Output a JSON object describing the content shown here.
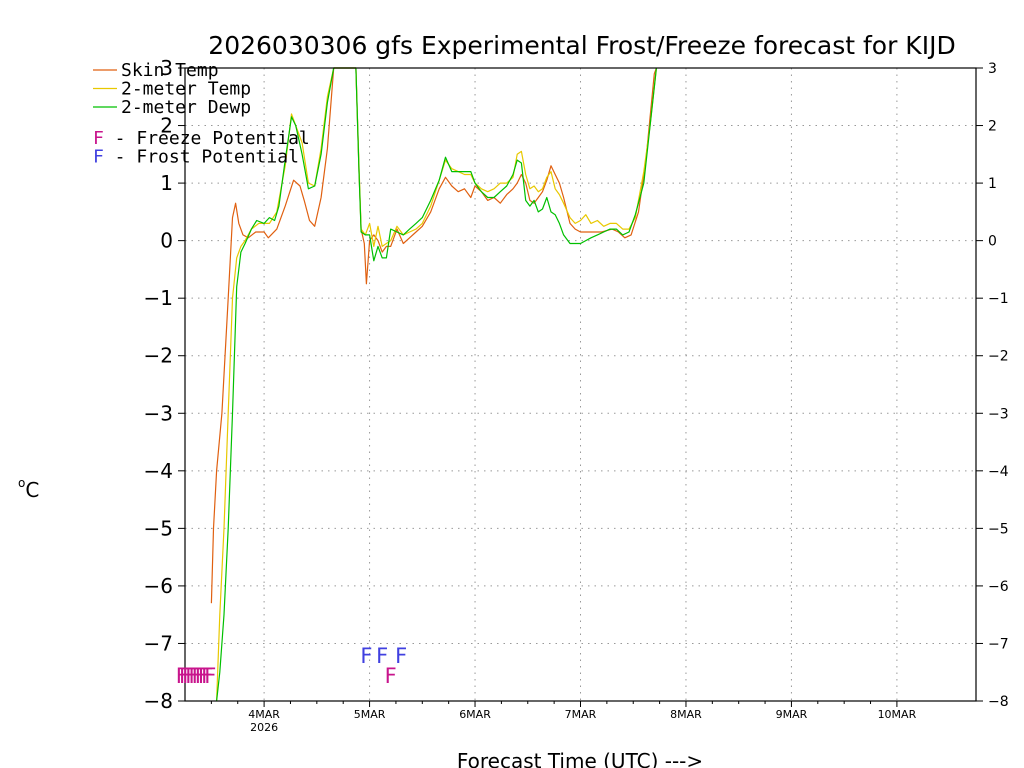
{
  "chart_data": {
    "type": "line",
    "title": "2026030306 gfs Experimental Frost/Freeze forecast for KIJD",
    "xlabel": "Forecast Time (UTC) --->",
    "ylabel_degree": "o",
    "ylabel_unit": "C",
    "x_unit": "days since 4MAR 00Z",
    "xlim": [
      -0.75,
      6.75
    ],
    "ylim": [
      -8,
      3
    ],
    "yticks": [
      -8,
      -7,
      -6,
      -5,
      -4,
      -3,
      -2,
      -1,
      0,
      1,
      2,
      3
    ],
    "ytick_labels": [
      "−8",
      "−7",
      "−6",
      "−5",
      "−4",
      "−3",
      "−2",
      "−1",
      "0",
      "1",
      "2",
      "3"
    ],
    "xticks": [
      {
        "x": 0,
        "label": "4MAR",
        "sublabel": "2026"
      },
      {
        "x": 1,
        "label": "5MAR",
        "sublabel": ""
      },
      {
        "x": 2,
        "label": "6MAR",
        "sublabel": ""
      },
      {
        "x": 3,
        "label": "7MAR",
        "sublabel": ""
      },
      {
        "x": 4,
        "label": "8MAR",
        "sublabel": ""
      },
      {
        "x": 5,
        "label": "9MAR",
        "sublabel": ""
      },
      {
        "x": 6,
        "label": "10MAR",
        "sublabel": ""
      }
    ],
    "grid": true,
    "legend": [
      {
        "label": "Skin Temp",
        "color": "#e06010"
      },
      {
        "label": "2-meter Temp",
        "color": "#e8c800"
      },
      {
        "label": "2-meter Dewp",
        "color": "#00c000"
      },
      {
        "label": "F - Freeze Potential",
        "color": "#c8148c",
        "marker": true
      },
      {
        "label": "F - Frost Potential",
        "color": "#4040e0",
        "marker": true
      }
    ],
    "series": [
      {
        "name": "Skin Temp",
        "color": "#e06010",
        "points": [
          [
            -0.5,
            -6.3
          ],
          [
            -0.48,
            -5.0
          ],
          [
            -0.45,
            -4.0
          ],
          [
            -0.4,
            -3.0
          ],
          [
            -0.34,
            -1.0
          ],
          [
            -0.3,
            0.4
          ],
          [
            -0.27,
            0.65
          ],
          [
            -0.24,
            0.3
          ],
          [
            -0.2,
            0.1
          ],
          [
            -0.15,
            0.05
          ],
          [
            -0.08,
            0.15
          ],
          [
            0,
            0.15
          ],
          [
            0.04,
            0.05
          ],
          [
            0.12,
            0.2
          ],
          [
            0.2,
            0.6
          ],
          [
            0.28,
            1.05
          ],
          [
            0.34,
            0.95
          ],
          [
            0.38,
            0.7
          ],
          [
            0.43,
            0.35
          ],
          [
            0.48,
            0.25
          ],
          [
            0.54,
            0.75
          ],
          [
            0.6,
            1.6
          ],
          [
            0.66,
            3.2
          ],
          [
            0.87,
            3.2
          ],
          [
            0.9,
            1.2
          ],
          [
            0.92,
            0.2
          ],
          [
            0.95,
            -0.05
          ],
          [
            0.97,
            -0.75
          ],
          [
            1.0,
            0.0
          ],
          [
            1.04,
            0.1
          ],
          [
            1.08,
            0.0
          ],
          [
            1.12,
            -0.2
          ],
          [
            1.16,
            -0.1
          ],
          [
            1.2,
            -0.1
          ],
          [
            1.26,
            0.2
          ],
          [
            1.32,
            -0.05
          ],
          [
            1.38,
            0.05
          ],
          [
            1.44,
            0.15
          ],
          [
            1.5,
            0.25
          ],
          [
            1.58,
            0.5
          ],
          [
            1.66,
            0.9
          ],
          [
            1.72,
            1.1
          ],
          [
            1.78,
            0.95
          ],
          [
            1.84,
            0.85
          ],
          [
            1.9,
            0.9
          ],
          [
            1.96,
            0.75
          ],
          [
            2.0,
            0.95
          ],
          [
            2.06,
            0.85
          ],
          [
            2.12,
            0.7
          ],
          [
            2.18,
            0.75
          ],
          [
            2.24,
            0.65
          ],
          [
            2.3,
            0.8
          ],
          [
            2.36,
            0.9
          ],
          [
            2.4,
            1.0
          ],
          [
            2.44,
            1.15
          ],
          [
            2.48,
            1.0
          ],
          [
            2.52,
            0.7
          ],
          [
            2.56,
            0.65
          ],
          [
            2.6,
            0.75
          ],
          [
            2.64,
            0.85
          ],
          [
            2.68,
            1.05
          ],
          [
            2.72,
            1.3
          ],
          [
            2.76,
            1.15
          ],
          [
            2.8,
            1.0
          ],
          [
            2.84,
            0.75
          ],
          [
            2.9,
            0.3
          ],
          [
            2.95,
            0.2
          ],
          [
            3.0,
            0.15
          ],
          [
            3.1,
            0.15
          ],
          [
            3.2,
            0.15
          ],
          [
            3.3,
            0.2
          ],
          [
            3.36,
            0.15
          ],
          [
            3.42,
            0.05
          ],
          [
            3.48,
            0.1
          ],
          [
            3.55,
            0.5
          ],
          [
            3.62,
            1.4
          ],
          [
            3.7,
            2.9
          ],
          [
            3.72,
            3.2
          ]
        ]
      },
      {
        "name": "2-meter Temp",
        "color": "#e8c800",
        "points": [
          [
            -0.45,
            -8.1
          ],
          [
            -0.42,
            -6.5
          ],
          [
            -0.38,
            -5.0
          ],
          [
            -0.34,
            -3.0
          ],
          [
            -0.3,
            -1.0
          ],
          [
            -0.26,
            -0.3
          ],
          [
            -0.22,
            -0.1
          ],
          [
            -0.18,
            0.0
          ],
          [
            -0.12,
            0.2
          ],
          [
            -0.05,
            0.3
          ],
          [
            0.0,
            0.3
          ],
          [
            0.05,
            0.3
          ],
          [
            0.12,
            0.5
          ],
          [
            0.2,
            1.3
          ],
          [
            0.26,
            2.2
          ],
          [
            0.3,
            2.0
          ],
          [
            0.36,
            1.7
          ],
          [
            0.42,
            1.0
          ],
          [
            0.48,
            0.95
          ],
          [
            0.54,
            1.6
          ],
          [
            0.6,
            2.5
          ],
          [
            0.66,
            3.2
          ],
          [
            0.87,
            3.2
          ],
          [
            0.9,
            1.3
          ],
          [
            0.92,
            0.2
          ],
          [
            0.96,
            0.1
          ],
          [
            1.0,
            0.3
          ],
          [
            1.04,
            -0.1
          ],
          [
            1.08,
            0.25
          ],
          [
            1.12,
            -0.1
          ],
          [
            1.16,
            -0.05
          ],
          [
            1.2,
            0.0
          ],
          [
            1.26,
            0.25
          ],
          [
            1.32,
            0.1
          ],
          [
            1.38,
            0.15
          ],
          [
            1.44,
            0.2
          ],
          [
            1.5,
            0.3
          ],
          [
            1.58,
            0.6
          ],
          [
            1.66,
            1.05
          ],
          [
            1.72,
            1.4
          ],
          [
            1.78,
            1.25
          ],
          [
            1.84,
            1.2
          ],
          [
            1.9,
            1.15
          ],
          [
            1.96,
            1.15
          ],
          [
            2.0,
            1.0
          ],
          [
            2.06,
            0.9
          ],
          [
            2.12,
            0.85
          ],
          [
            2.18,
            0.9
          ],
          [
            2.24,
            1.0
          ],
          [
            2.3,
            1.0
          ],
          [
            2.36,
            1.1
          ],
          [
            2.4,
            1.5
          ],
          [
            2.44,
            1.55
          ],
          [
            2.48,
            1.15
          ],
          [
            2.52,
            0.9
          ],
          [
            2.56,
            0.95
          ],
          [
            2.6,
            0.85
          ],
          [
            2.64,
            0.9
          ],
          [
            2.68,
            1.1
          ],
          [
            2.72,
            1.2
          ],
          [
            2.76,
            0.9
          ],
          [
            2.8,
            0.8
          ],
          [
            2.84,
            0.65
          ],
          [
            2.9,
            0.4
          ],
          [
            2.95,
            0.3
          ],
          [
            3.0,
            0.35
          ],
          [
            3.05,
            0.45
          ],
          [
            3.1,
            0.3
          ],
          [
            3.16,
            0.35
          ],
          [
            3.22,
            0.25
          ],
          [
            3.28,
            0.3
          ],
          [
            3.34,
            0.3
          ],
          [
            3.4,
            0.2
          ],
          [
            3.46,
            0.2
          ],
          [
            3.52,
            0.4
          ],
          [
            3.6,
            1.2
          ],
          [
            3.66,
            2.0
          ],
          [
            3.72,
            3.2
          ]
        ]
      },
      {
        "name": "2-meter Dewp",
        "color": "#00c000",
        "points": [
          [
            -0.45,
            -8.1
          ],
          [
            -0.42,
            -7.5
          ],
          [
            -0.38,
            -6.5
          ],
          [
            -0.34,
            -5.0
          ],
          [
            -0.3,
            -3.0
          ],
          [
            -0.26,
            -0.8
          ],
          [
            -0.22,
            -0.2
          ],
          [
            -0.18,
            -0.05
          ],
          [
            -0.12,
            0.2
          ],
          [
            -0.07,
            0.35
          ],
          [
            0.0,
            0.3
          ],
          [
            0.05,
            0.4
          ],
          [
            0.1,
            0.35
          ],
          [
            0.14,
            0.6
          ],
          [
            0.2,
            1.4
          ],
          [
            0.26,
            2.15
          ],
          [
            0.3,
            2.0
          ],
          [
            0.36,
            1.5
          ],
          [
            0.42,
            0.9
          ],
          [
            0.48,
            0.95
          ],
          [
            0.54,
            1.5
          ],
          [
            0.6,
            2.4
          ],
          [
            0.66,
            3.2
          ],
          [
            0.87,
            3.2
          ],
          [
            0.9,
            1.2
          ],
          [
            0.92,
            0.15
          ],
          [
            0.96,
            0.1
          ],
          [
            1.0,
            0.1
          ],
          [
            1.04,
            -0.35
          ],
          [
            1.08,
            -0.1
          ],
          [
            1.12,
            -0.3
          ],
          [
            1.16,
            -0.3
          ],
          [
            1.2,
            0.2
          ],
          [
            1.26,
            0.15
          ],
          [
            1.32,
            0.1
          ],
          [
            1.38,
            0.2
          ],
          [
            1.44,
            0.3
          ],
          [
            1.5,
            0.4
          ],
          [
            1.58,
            0.7
          ],
          [
            1.66,
            1.05
          ],
          [
            1.72,
            1.45
          ],
          [
            1.78,
            1.2
          ],
          [
            1.84,
            1.2
          ],
          [
            1.9,
            1.2
          ],
          [
            1.96,
            1.2
          ],
          [
            2.0,
            1.0
          ],
          [
            2.06,
            0.85
          ],
          [
            2.12,
            0.75
          ],
          [
            2.18,
            0.75
          ],
          [
            2.24,
            0.85
          ],
          [
            2.3,
            0.95
          ],
          [
            2.36,
            1.15
          ],
          [
            2.4,
            1.4
          ],
          [
            2.44,
            1.35
          ],
          [
            2.48,
            0.7
          ],
          [
            2.52,
            0.6
          ],
          [
            2.56,
            0.7
          ],
          [
            2.6,
            0.5
          ],
          [
            2.64,
            0.55
          ],
          [
            2.68,
            0.75
          ],
          [
            2.72,
            0.5
          ],
          [
            2.76,
            0.45
          ],
          [
            2.8,
            0.3
          ],
          [
            2.84,
            0.1
          ],
          [
            2.9,
            -0.05
          ],
          [
            2.95,
            -0.05
          ],
          [
            3.0,
            -0.05
          ],
          [
            3.05,
            0.0
          ],
          [
            3.1,
            0.05
          ],
          [
            3.16,
            0.1
          ],
          [
            3.22,
            0.15
          ],
          [
            3.28,
            0.2
          ],
          [
            3.34,
            0.2
          ],
          [
            3.4,
            0.1
          ],
          [
            3.46,
            0.15
          ],
          [
            3.52,
            0.45
          ],
          [
            3.6,
            1.0
          ],
          [
            3.66,
            2.0
          ],
          [
            3.72,
            3.2
          ]
        ]
      }
    ],
    "freeze_marks": {
      "label": "F",
      "color": "#c8148c",
      "y": -7.55,
      "x": [
        -0.78,
        -0.75,
        -0.72,
        -0.69,
        -0.66,
        -0.63,
        -0.6,
        -0.57,
        -0.54,
        -0.51,
        1.2
      ]
    },
    "frost_marks": {
      "label": "F",
      "color": "#4040e0",
      "y": -7.2,
      "x": [
        0.97,
        1.12,
        1.3
      ]
    }
  }
}
